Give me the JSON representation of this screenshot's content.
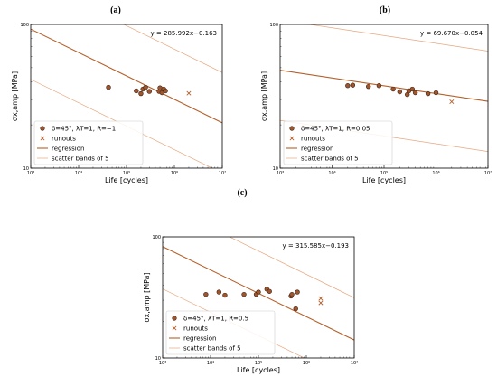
{
  "colors": {
    "line": "#b5602a",
    "band": "#e6a77f",
    "point_fill": "#a0552c",
    "point_edge": "#3a2416",
    "runout": "#b5602a"
  },
  "chart_data": [
    {
      "type": "scatter",
      "panel_label": "(a)",
      "xlabel": "Life [cycles]",
      "ylabel": "σx,amp [MPa]",
      "xscale": "log",
      "yscale": "log",
      "xlim": [
        1000,
        10000000
      ],
      "ylim": [
        10,
        100
      ],
      "x_ticks": [
        {
          "v": 1000,
          "label": "10³"
        },
        {
          "v": 10000,
          "label": "10⁴"
        },
        {
          "v": 100000,
          "label": "10⁵"
        },
        {
          "v": 1000000,
          "label": "10⁶"
        },
        {
          "v": 10000000,
          "label": "10⁷"
        }
      ],
      "y_ticks": [
        {
          "v": 10,
          "label": "10"
        },
        {
          "v": 100,
          "label": "100"
        }
      ],
      "equation": "y = 285.992x−0.163",
      "regression": {
        "a": 285.992,
        "b": -0.163
      },
      "scatter_band_factor": 5,
      "legend": {
        "position": "bottom-left",
        "entries": [
          "δ=45°, λT=1, R=−1",
          "runouts",
          "regression",
          "scatter bands of 5"
        ]
      },
      "failures": [
        [
          42000,
          36.5
        ],
        [
          160000,
          34.5
        ],
        [
          200000,
          33
        ],
        [
          220000,
          35.5
        ],
        [
          250000,
          36.5
        ],
        [
          300000,
          34.2
        ],
        [
          480000,
          34.2
        ],
        [
          500000,
          36.2
        ],
        [
          550000,
          33.5
        ],
        [
          600000,
          35.5
        ],
        [
          650000,
          34.5
        ]
      ],
      "runouts": [
        [
          2000000,
          33.2
        ]
      ]
    },
    {
      "type": "scatter",
      "panel_label": "(b)",
      "xlabel": "Life [cycles]",
      "ylabel": "σx,amp [MPa]",
      "xscale": "log",
      "yscale": "log",
      "xlim": [
        1000,
        10000000
      ],
      "ylim": [
        10,
        100
      ],
      "x_ticks": [
        {
          "v": 1000,
          "label": "10³"
        },
        {
          "v": 10000,
          "label": "10⁴"
        },
        {
          "v": 100000,
          "label": "10⁵"
        },
        {
          "v": 1000000,
          "label": "10⁶"
        },
        {
          "v": 10000000,
          "label": "10⁷"
        }
      ],
      "y_ticks": [
        {
          "v": 10,
          "label": "10"
        },
        {
          "v": 100,
          "label": "100"
        }
      ],
      "equation": "y = 69.670x−0.054",
      "regression": {
        "a": 69.67,
        "b": -0.054
      },
      "scatter_band_factor": 5,
      "legend": {
        "position": "bottom-left",
        "entries": [
          "δ=45°, λT=1, R=0.05",
          "runouts",
          "regression",
          "scatter bands of 5"
        ]
      },
      "failures": [
        [
          20000,
          37.5
        ],
        [
          25000,
          37.8
        ],
        [
          50000,
          37
        ],
        [
          80000,
          37.5
        ],
        [
          150000,
          35.5
        ],
        [
          200000,
          34
        ],
        [
          280000,
          32.5
        ],
        [
          300000,
          34.5
        ],
        [
          350000,
          35.5
        ],
        [
          400000,
          33.5
        ],
        [
          700000,
          33
        ],
        [
          1000000,
          33.5
        ]
      ],
      "runouts": [
        [
          2000000,
          29
        ]
      ]
    },
    {
      "type": "scatter",
      "panel_label": "(c)",
      "xlabel": "Life [cycles]",
      "ylabel": "σx,amp [MPa]",
      "xscale": "log",
      "yscale": "log",
      "xlim": [
        1000,
        10000000
      ],
      "ylim": [
        10,
        100
      ],
      "x_ticks": [
        {
          "v": 1000,
          "label": "10³"
        },
        {
          "v": 10000,
          "label": "10⁴"
        },
        {
          "v": 100000,
          "label": "10⁵"
        },
        {
          "v": 1000000,
          "label": "10⁶"
        },
        {
          "v": 10000000,
          "label": "10⁷"
        }
      ],
      "y_ticks": [
        {
          "v": 10,
          "label": "10"
        },
        {
          "v": 100,
          "label": "100"
        }
      ],
      "equation": "y = 315.585x−0.193",
      "regression": {
        "a": 315.585,
        "b": -0.193
      },
      "scatter_band_factor": 5,
      "legend": {
        "position": "bottom-left",
        "entries": [
          "δ=45°, λT=1, R=0.5",
          "runouts",
          "regression",
          "scatter bands of 5"
        ]
      },
      "failures": [
        [
          8000,
          33.5
        ],
        [
          15000,
          35
        ],
        [
          20000,
          33
        ],
        [
          50000,
          33.5
        ],
        [
          90000,
          33.5
        ],
        [
          100000,
          35
        ],
        [
          150000,
          37
        ],
        [
          170000,
          35.5
        ],
        [
          480000,
          32.5
        ],
        [
          500000,
          33.5
        ],
        [
          600000,
          25.5
        ],
        [
          650000,
          35
        ]
      ],
      "runouts": [
        [
          2000000,
          31
        ],
        [
          2000000,
          28.5
        ]
      ]
    }
  ]
}
